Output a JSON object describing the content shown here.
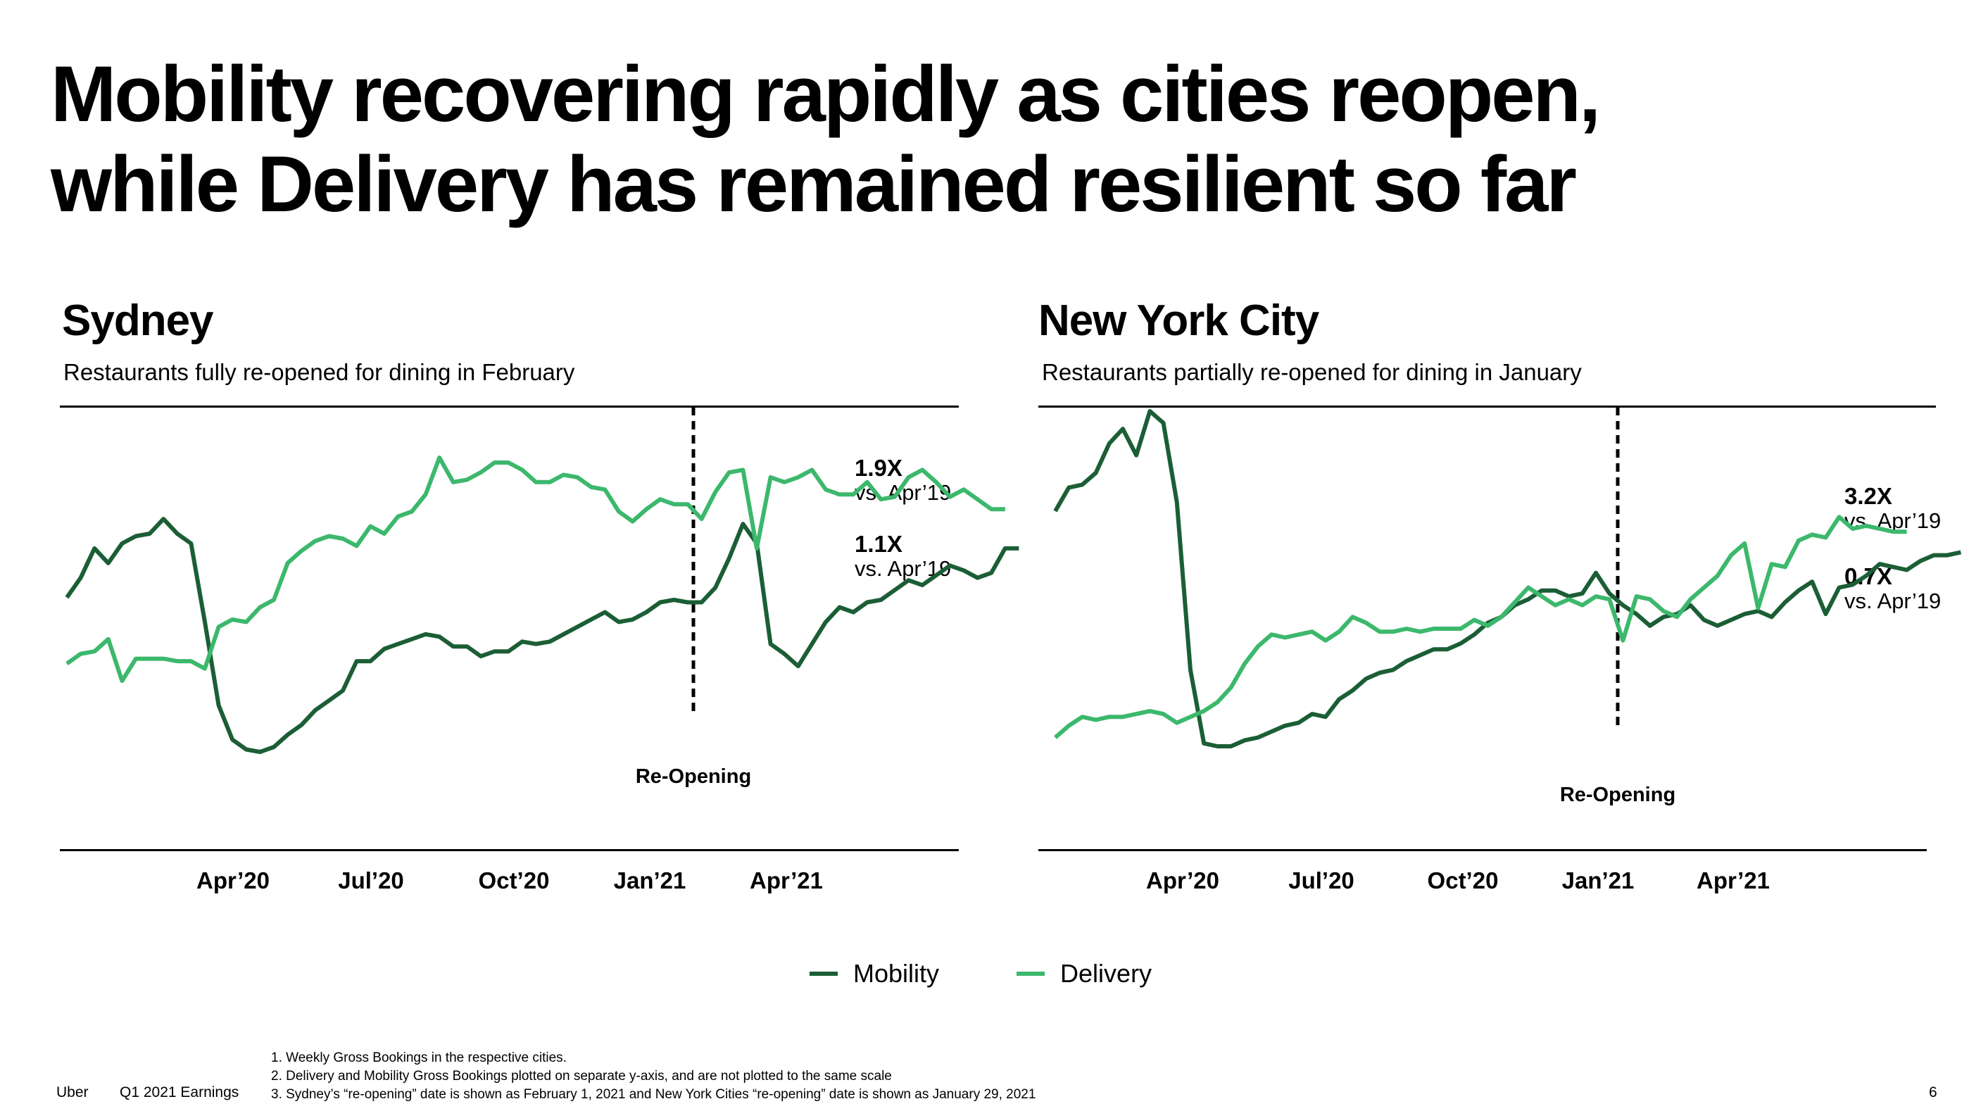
{
  "title": "Mobility recovering rapidly as cities reopen,\nwhile Delivery has remained resilient so far",
  "colors": {
    "mobility": "#1b5e35",
    "delivery": "#3cb86c"
  },
  "legend": {
    "mobility": "Mobility",
    "delivery": "Delivery"
  },
  "reopening_label": "Re-Opening",
  "footer": {
    "brand": "Uber",
    "report": "Q1 2021 Earnings",
    "page": "6",
    "notes": [
      "1.  Weekly Gross Bookings in the respective cities.",
      "2.  Delivery and Mobility Gross Bookings plotted on separate y-axis, and are not plotted to the same scale",
      "3.  Sydney’s “re-opening” date is shown as February 1, 2021 and New York Cities “re-opening” date is shown as January 29, 2021"
    ]
  },
  "chart_data": [
    {
      "type": "line",
      "title": "Sydney",
      "subtitle": "Restaurants fully re-opened for dining in February",
      "x_ticks": [
        "Apr’20",
        "Jul’20",
        "Oct’20",
        "Jan’21",
        "Apr’21"
      ],
      "reopening_week": 53,
      "annotations": [
        {
          "series": "Delivery",
          "multiple": "1.9X",
          "label": "vs. Apr’19"
        },
        {
          "series": "Mobility",
          "multiple": "1.1X",
          "label": "vs. Apr’19"
        }
      ],
      "series": [
        {
          "name": "Mobility",
          "values": [
            0.52,
            0.6,
            0.72,
            0.66,
            0.74,
            0.77,
            0.78,
            0.84,
            0.78,
            0.74,
            0.42,
            0.08,
            -0.06,
            -0.1,
            -0.11,
            -0.09,
            -0.04,
            0.0,
            0.06,
            0.1,
            0.14,
            0.26,
            0.26,
            0.31,
            0.33,
            0.35,
            0.37,
            0.36,
            0.32,
            0.32,
            0.28,
            0.3,
            0.3,
            0.34,
            0.33,
            0.34,
            0.37,
            0.4,
            0.43,
            0.46,
            0.42,
            0.43,
            0.46,
            0.5,
            0.51,
            0.5,
            0.5,
            0.56,
            0.68,
            0.82,
            0.74,
            0.33,
            0.29,
            0.24,
            0.33,
            0.42,
            0.48,
            0.46,
            0.5,
            0.51,
            0.55,
            0.59,
            0.57,
            0.61,
            0.65,
            0.63,
            0.6,
            0.62,
            0.72,
            0.72
          ]
        },
        {
          "name": "Delivery",
          "values": [
            0.25,
            0.29,
            0.3,
            0.35,
            0.18,
            0.27,
            0.27,
            0.27,
            0.26,
            0.26,
            0.23,
            0.4,
            0.43,
            0.42,
            0.48,
            0.51,
            0.66,
            0.71,
            0.75,
            0.77,
            0.76,
            0.73,
            0.81,
            0.78,
            0.85,
            0.87,
            0.94,
            1.09,
            0.99,
            1.0,
            1.03,
            1.07,
            1.07,
            1.04,
            0.99,
            0.99,
            1.02,
            1.01,
            0.97,
            0.96,
            0.87,
            0.83,
            0.88,
            0.92,
            0.9,
            0.9,
            0.84,
            0.95,
            1.03,
            1.04,
            0.72,
            1.01,
            0.99,
            1.01,
            1.04,
            0.96,
            0.94,
            0.94,
            0.99,
            0.92,
            0.93,
            1.01,
            1.04,
            0.99,
            0.93,
            0.96,
            0.92,
            0.88,
            0.88
          ]
        }
      ]
    },
    {
      "type": "line",
      "title": "New York City",
      "subtitle": "Restaurants partially re-opened for dining in January",
      "x_ticks": [
        "Apr’20",
        "Jul’20",
        "Oct’20",
        "Jan’21",
        "Apr’21"
      ],
      "reopening_week": 52,
      "annotations": [
        {
          "series": "Delivery",
          "multiple": "3.2X",
          "label": "vs. Apr’19"
        },
        {
          "series": "Mobility",
          "multiple": "0.7X",
          "label": "vs. Apr’19"
        }
      ],
      "series": [
        {
          "name": "Mobility",
          "values": [
            0.9,
            0.98,
            0.99,
            1.03,
            1.13,
            1.18,
            1.09,
            1.24,
            1.2,
            0.93,
            0.36,
            0.11,
            0.1,
            0.1,
            0.12,
            0.13,
            0.15,
            0.17,
            0.18,
            0.21,
            0.2,
            0.26,
            0.29,
            0.33,
            0.35,
            0.36,
            0.39,
            0.41,
            0.43,
            0.43,
            0.45,
            0.48,
            0.52,
            0.54,
            0.58,
            0.6,
            0.63,
            0.63,
            0.61,
            0.62,
            0.69,
            0.62,
            0.58,
            0.55,
            0.51,
            0.54,
            0.55,
            0.58,
            0.53,
            0.51,
            0.53,
            0.55,
            0.56,
            0.54,
            0.59,
            0.63,
            0.66,
            0.55,
            0.64,
            0.65,
            0.68,
            0.72,
            0.71,
            0.7,
            0.73,
            0.75,
            0.75,
            0.76
          ]
        },
        {
          "name": "Delivery",
          "values": [
            0.13,
            0.17,
            0.2,
            0.19,
            0.2,
            0.2,
            0.21,
            0.22,
            0.21,
            0.18,
            0.2,
            0.22,
            0.25,
            0.3,
            0.38,
            0.44,
            0.48,
            0.47,
            0.48,
            0.49,
            0.46,
            0.49,
            0.54,
            0.52,
            0.49,
            0.49,
            0.5,
            0.49,
            0.5,
            0.5,
            0.5,
            0.53,
            0.51,
            0.54,
            0.59,
            0.64,
            0.61,
            0.58,
            0.6,
            0.58,
            0.61,
            0.6,
            0.46,
            0.61,
            0.6,
            0.56,
            0.54,
            0.6,
            0.64,
            0.68,
            0.75,
            0.79,
            0.57,
            0.72,
            0.71,
            0.8,
            0.82,
            0.81,
            0.88,
            0.84,
            0.85,
            0.84,
            0.83,
            0.83
          ]
        }
      ]
    }
  ]
}
